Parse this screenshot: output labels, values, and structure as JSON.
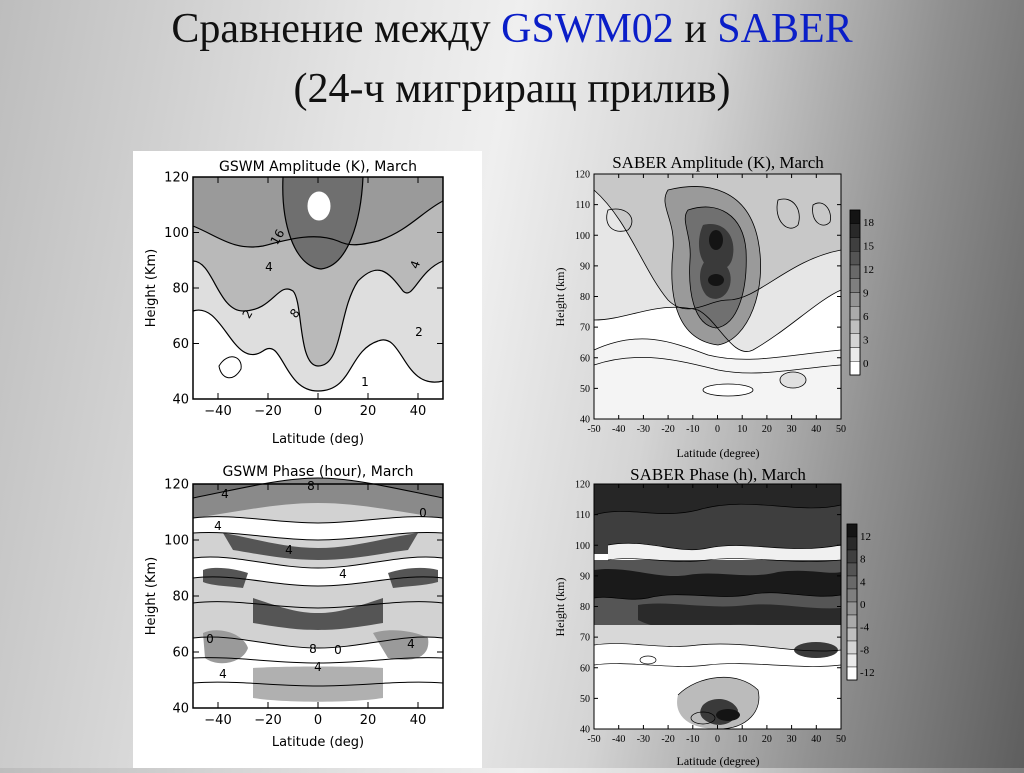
{
  "slide": {
    "title_prefix": "Сравнение между",
    "title_model": "GSWM02",
    "title_and": "и",
    "title_sat": "SABER",
    "subtitle": "(24-ч мигриращ прилив)",
    "accent_color": "#0a1ec8"
  },
  "chart_data": [
    {
      "type": "heatmap",
      "title": "GSWM Amplitude (K), March",
      "xlabel": "Latitude (deg)",
      "ylabel": "Height (Km)",
      "xlim": [
        -50,
        50
      ],
      "ylim": [
        40,
        120
      ],
      "x_ticks": [
        "−40",
        "−20",
        "0",
        "20",
        "40"
      ],
      "y_ticks": [
        "40",
        "60",
        "80",
        "100",
        "120"
      ],
      "contour_labels": [
        "16",
        "4",
        "4",
        "8",
        "2",
        "2",
        "1"
      ]
    },
    {
      "type": "heatmap",
      "title": "SABER Amplitude (K), March",
      "xlabel": "Latitude (degree)",
      "ylabel": "Height  (km)",
      "xlim": [
        -50,
        50
      ],
      "ylim": [
        40,
        120
      ],
      "x_ticks": [
        "-50",
        "-40",
        "-30",
        "-20",
        "-10",
        "0",
        "10",
        "20",
        "30",
        "40",
        "50"
      ],
      "y_ticks": [
        "40",
        "50",
        "60",
        "70",
        "80",
        "90",
        "100",
        "110",
        "120"
      ],
      "colorbar": [
        "18",
        "15",
        "12",
        "9",
        "6",
        "3",
        "0"
      ]
    },
    {
      "type": "heatmap",
      "title": "GSWM Phase (hour), March",
      "xlabel": "Latitude (deg)",
      "ylabel": "Height (Km)",
      "xlim": [
        -50,
        50
      ],
      "ylim": [
        40,
        120
      ],
      "x_ticks": [
        "−40",
        "−20",
        "0",
        "20",
        "40"
      ],
      "y_ticks": [
        "40",
        "60",
        "80",
        "100",
        "120"
      ],
      "contour_labels": [
        "4",
        "8",
        "4",
        "4",
        "4",
        "0",
        "0",
        "4",
        "4",
        "8",
        "0",
        "4"
      ]
    },
    {
      "type": "heatmap",
      "title": "SABER Phase (h), March",
      "xlabel": "Latitude (degree)",
      "ylabel": "Height  (km)",
      "xlim": [
        -50,
        50
      ],
      "ylim": [
        40,
        120
      ],
      "x_ticks": [
        "-50",
        "-40",
        "-30",
        "-20",
        "-10",
        "0",
        "10",
        "20",
        "30",
        "40",
        "50"
      ],
      "y_ticks": [
        "40",
        "50",
        "60",
        "70",
        "80",
        "90",
        "100",
        "110",
        "120"
      ],
      "colorbar": [
        "12",
        "8",
        "4",
        "0",
        "-4",
        "-8",
        "-12"
      ]
    }
  ]
}
